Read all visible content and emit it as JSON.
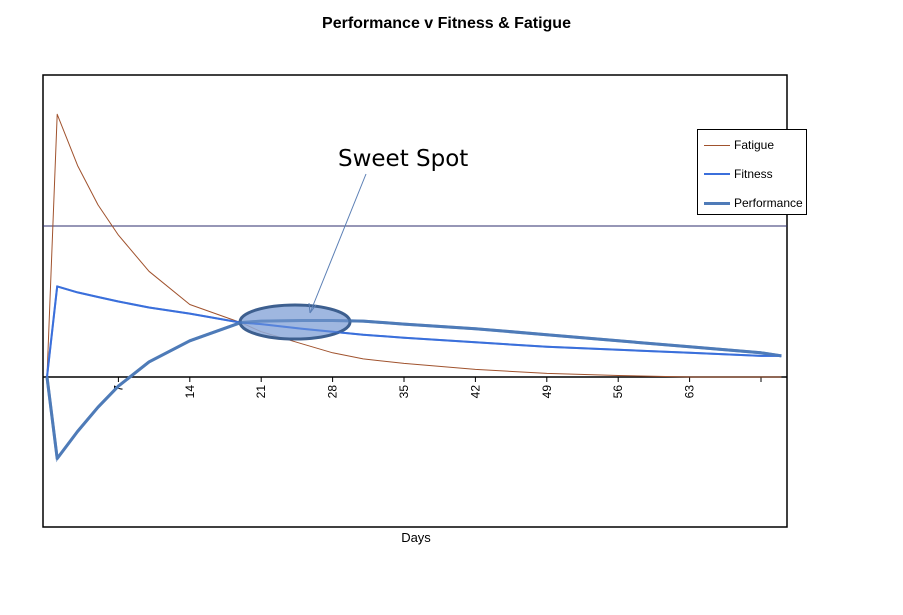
{
  "chart_data": {
    "type": "line",
    "title": "Performance v Fitness & Fatigue",
    "xlabel": "Days",
    "ylabel": "",
    "x_ticks": [
      7,
      14,
      21,
      28,
      35,
      42,
      49,
      56,
      63
    ],
    "xlim": [
      0,
      72
    ],
    "ylim": [
      -50,
      100
    ],
    "gridlines_y": [
      50
    ],
    "legend_position": "right",
    "x": [
      0,
      1,
      3,
      5,
      7,
      10,
      14,
      19,
      21,
      25,
      28,
      31,
      35,
      42,
      49,
      56,
      63,
      70,
      72
    ],
    "series": [
      {
        "name": "Fatigue",
        "color": "#a0522d",
        "width": 1,
        "values": [
          0,
          87,
          70,
          57,
          47,
          35,
          24,
          18,
          15,
          11,
          8,
          6,
          4.5,
          2.5,
          1.2,
          0.5,
          0,
          0,
          0
        ]
      },
      {
        "name": "Fitness",
        "color": "#3b6fdb",
        "width": 2,
        "values": [
          0,
          30,
          28,
          26.5,
          25,
          23,
          21,
          18,
          17.5,
          16,
          15,
          14,
          13,
          11.5,
          10,
          9,
          8,
          7,
          7
        ]
      },
      {
        "name": "Performance",
        "color": "#4f7bb8",
        "width": 3,
        "values": [
          0,
          -27,
          -18,
          -10,
          -3,
          5,
          12,
          18,
          18.5,
          18.7,
          18.7,
          18.5,
          17.5,
          16,
          14,
          12,
          10,
          8,
          7
        ]
      }
    ],
    "annotations": [
      {
        "text": "Sweet Spot",
        "target_x": 25,
        "target_y": 18,
        "shape": "ellipse"
      }
    ]
  },
  "legend": {
    "items": [
      {
        "label": "Fatigue",
        "color": "#a0522d"
      },
      {
        "label": "Fitness",
        "color": "#3b6fdb"
      },
      {
        "label": "Performance",
        "color": "#4f7bb8"
      }
    ]
  },
  "colors": {
    "axis": "#000000",
    "gridline": "#2e2e6e",
    "ellipse_fill": "#8eaadb",
    "ellipse_stroke": "#3d5f8f",
    "arrow": "#5b7fb5"
  }
}
